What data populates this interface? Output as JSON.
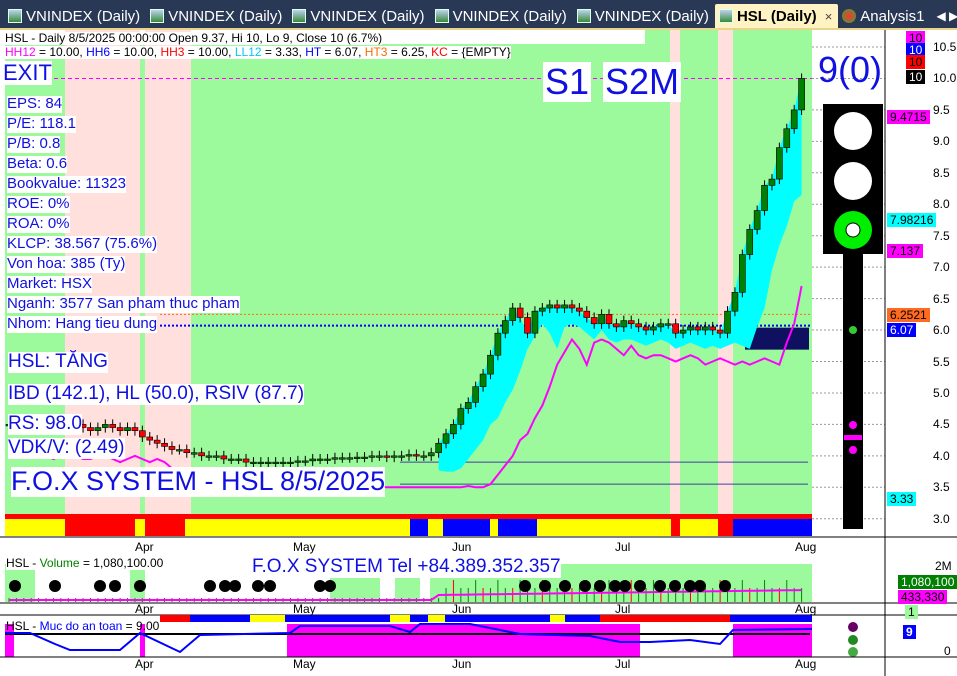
{
  "tabs": [
    {
      "label": "VNINDEX (Daily)"
    },
    {
      "label": "VNINDEX (Daily)"
    },
    {
      "label": "VNINDEX (Daily)"
    },
    {
      "label": "VNINDEX (Daily)"
    },
    {
      "label": "VNINDEX (Daily)"
    },
    {
      "label": "HSL (Daily)",
      "active": true
    },
    {
      "label": "Analysis1"
    }
  ],
  "tab_close": "×",
  "tab_nav": "◀ ▶ ▼",
  "header": {
    "line1": "HSL - Daily 8/5/2025 00:00:00 Open 9.37, Hi 10, Lo 9, Close 10 (6.7%)",
    "line2": [
      {
        "k": "HH12",
        "v": " = 10.00, ",
        "c": "#ff00ff"
      },
      {
        "k": "HH6",
        "v": " = 10.00, ",
        "c": "#0000ff"
      },
      {
        "k": "HH3",
        "v": " = 10.00, ",
        "c": "#ff0000"
      },
      {
        "k": "LL12",
        "v": " = 3.33, ",
        "c": "#00c8ff"
      },
      {
        "k": "HT",
        "v": "  = 6.07, ",
        "c": "#0000ff"
      },
      {
        "k": "HT3",
        "v": "  = 6.25, ",
        "c": "#ff6a00"
      },
      {
        "k": "KC",
        "v": " = {EMPTY}",
        "c": "#ff0000"
      }
    ]
  },
  "overlay": {
    "exit": "EXIT",
    "s1": "S1",
    "s2m": "S2M",
    "count": "9(0)",
    "fundamentals": [
      "EPS: 84",
      "P/E: 118.1",
      "P/B: 0.8",
      "Beta: 0.6",
      "Bookvalue: 11323",
      "ROE: 0%",
      "ROA: 0%",
      "KLCP: 38.567 (75.6%)",
      "Von hoa: 385 (Ty)",
      "Market: HSX",
      "Nganh: 3577 San pham thuc pham",
      "Nhom: Hang tieu dung"
    ],
    "status": "HSL: TĂNG",
    "ibd": "IBD (142.1), HL (50.0), RSIV (87.7)",
    "rs": "RS: 98.0",
    "vdk": "VDK/V:  (2.49)",
    "watermark": "F.O.X SYSTEM - HSL 8/5/2025"
  },
  "price_axis": {
    "ticks": [
      "10.5",
      "10.0",
      "9.5",
      "9.0",
      "8.5",
      "8.0",
      "7.5",
      "7.0",
      "6.5",
      "6.0",
      "5.5",
      "5.0",
      "4.5",
      "4.0",
      "3.5",
      "3.0"
    ],
    "tags": [
      {
        "text": "10",
        "bg": "#ff00ff",
        "fg": "#000"
      },
      {
        "text": "10",
        "bg": "#0000ff",
        "fg": "#fff"
      },
      {
        "text": "10",
        "bg": "#ff0000",
        "fg": "#000"
      },
      {
        "text": "10",
        "bg": "#000000",
        "fg": "#fff"
      },
      {
        "text": "9.4715",
        "bg": "#ff00ff",
        "fg": "#000"
      },
      {
        "text": "7.98216",
        "bg": "#00ffff",
        "fg": "#000"
      },
      {
        "text": "7.137",
        "bg": "#ff00ff",
        "fg": "#000"
      },
      {
        "text": "6.2521",
        "bg": "#ff6a20",
        "fg": "#000"
      },
      {
        "text": "6.07",
        "bg": "#0000ff",
        "fg": "#fff"
      },
      {
        "text": "3.33",
        "bg": "#00ffff",
        "fg": "#000"
      }
    ]
  },
  "months": [
    "Apr",
    "May",
    "Jun",
    "Jul",
    "Aug"
  ],
  "volume": {
    "title": "HSL",
    "sep": " - ",
    "name": "Volume",
    "value": " = 1,080,100.00",
    "banner": "F.O.X SYSTEM Tel +84.389.352.357",
    "axis_2m": "2M",
    "tag_vol": "1,080,100",
    "tag_avg": "433,330",
    "tag_1": "1"
  },
  "safety": {
    "title": "HSL",
    "sep": " - ",
    "name": "Muc do an toan",
    "value": " = 9.00",
    "tag": "9",
    "axis_0": "0"
  },
  "chart_data": {
    "type": "candlestick",
    "symbol": "HSL",
    "interval": "Daily",
    "ylim": [
      2.8,
      10.7
    ],
    "closes": [
      4.5,
      4.5,
      4.45,
      4.5,
      4.55,
      4.5,
      4.5,
      4.45,
      4.5,
      4.5,
      4.45,
      4.4,
      4.45,
      4.5,
      4.45,
      4.4,
      4.45,
      4.4,
      4.3,
      4.25,
      4.2,
      4.15,
      4.1,
      4.1,
      4.05,
      4.05,
      4.0,
      4.0,
      4.0,
      3.95,
      3.95,
      3.95,
      3.9,
      3.9,
      3.9,
      3.9,
      3.9,
      3.9,
      3.9,
      3.92,
      3.92,
      3.95,
      3.95,
      3.95,
      3.97,
      3.97,
      3.97,
      3.98,
      3.98,
      4.0,
      4.0,
      3.98,
      4.0,
      4.0,
      4.02,
      4.0,
      4.0,
      4.05,
      4.2,
      4.35,
      4.5,
      4.75,
      4.85,
      5.1,
      5.3,
      5.6,
      5.95,
      6.15,
      6.35,
      6.2,
      5.95,
      6.3,
      6.35,
      6.4,
      6.35,
      6.4,
      6.35,
      6.3,
      6.2,
      6.1,
      6.25,
      6.1,
      6.05,
      6.15,
      6.1,
      6.05,
      6.0,
      6.05,
      6.1,
      6.1,
      5.95,
      6.0,
      6.05,
      6.0,
      6.05,
      6.0,
      5.95,
      6.3,
      6.6,
      7.2,
      7.6,
      7.9,
      8.3,
      8.4,
      8.9,
      9.2,
      9.5,
      10.0
    ],
    "last": {
      "open": 9.37,
      "high": 10,
      "low": 9,
      "close": 10,
      "change_pct": 6.7
    },
    "levels": {
      "HH12": 10,
      "HH6": 10,
      "HH3": 10,
      "LL12": 3.33,
      "HT": 6.07,
      "HT3": 6.25
    },
    "volume_last": 1080100,
    "volume_avg": 433330,
    "safety_last": 9
  },
  "colors": {
    "up": "#008000",
    "down": "#ff0000",
    "bg_green": "#9cf99c",
    "bg_pink": "#ffe0dc",
    "band": "#00ffff",
    "stop": "#ff00ff",
    "safety_fill": "#ff00ff"
  }
}
